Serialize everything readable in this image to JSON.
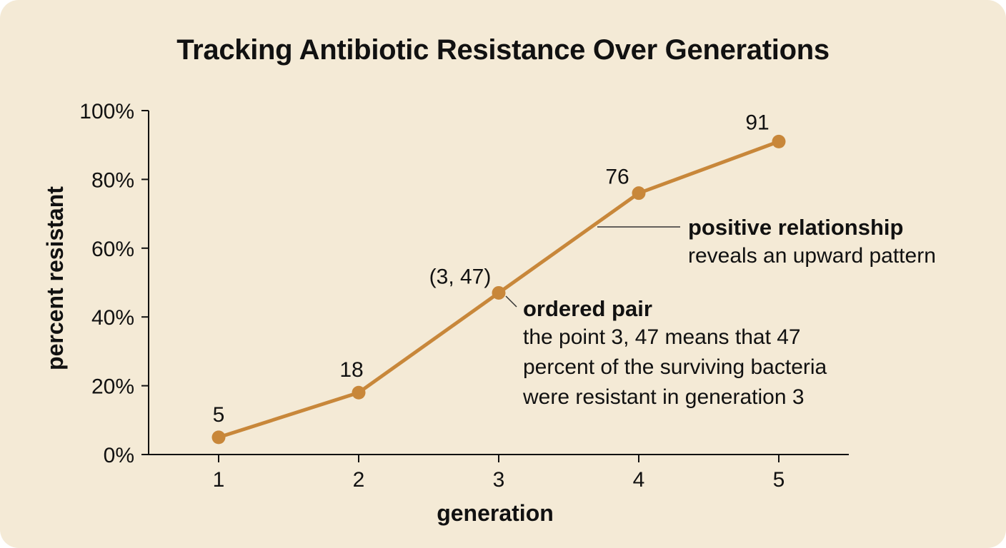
{
  "title": "Tracking Antibiotic Resistance Over Generations",
  "colors": {
    "background": "#f4ead6",
    "line": "#c8873a",
    "axis": "#111111",
    "text": "#111111"
  },
  "chart_data": {
    "type": "line",
    "title": "Tracking Antibiotic Resistance Over Generations",
    "xlabel": "generation",
    "ylabel": "percent resistant",
    "x": [
      1,
      2,
      3,
      4,
      5
    ],
    "y": [
      5,
      18,
      47,
      76,
      91
    ],
    "xlim": [
      0.5,
      5.5
    ],
    "ylim": [
      0,
      100
    ],
    "x_ticks": [
      "1",
      "2",
      "3",
      "4",
      "5"
    ],
    "y_ticks": [
      "0%",
      "20%",
      "40%",
      "60%",
      "80%",
      "100%"
    ],
    "data_labels": [
      "5",
      "18",
      "(3, 47)",
      "76",
      "91"
    ],
    "grid": false,
    "legend": "none",
    "annotations": [
      {
        "heading": "positive relationship",
        "lines": [
          "reveals an upward pattern"
        ]
      },
      {
        "heading": "ordered pair",
        "lines": [
          "the point 3, 47 means that 47",
          "percent of the surviving bacteria",
          "were resistant in generation 3"
        ]
      }
    ]
  }
}
